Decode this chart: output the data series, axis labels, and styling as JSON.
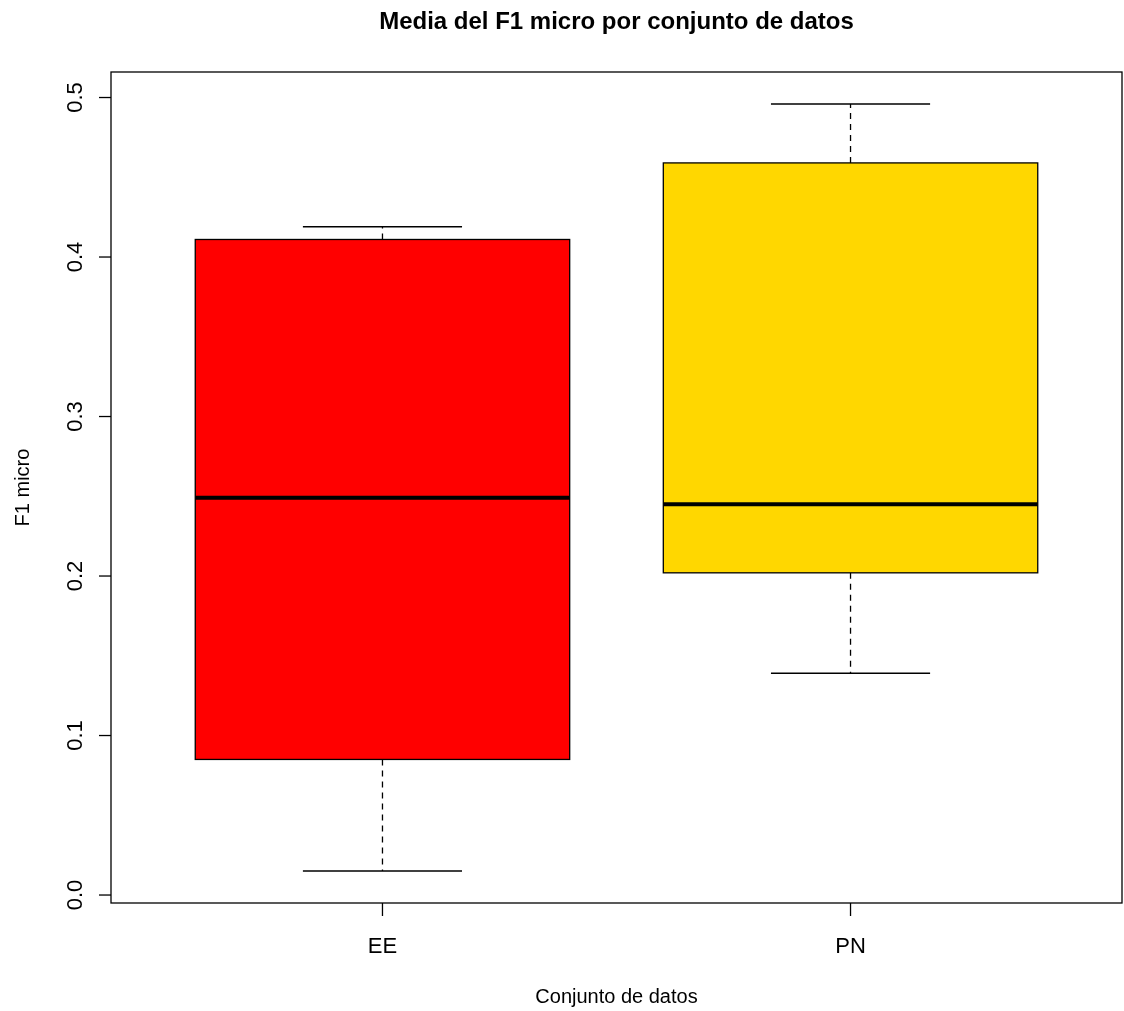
{
  "chart_data": {
    "type": "box",
    "title": "Media del F1 micro por conjunto de datos",
    "xlabel": "Conjunto de datos",
    "ylabel": "F1 micro",
    "categories": [
      "EE",
      "PN"
    ],
    "boxes": [
      {
        "low": 0.015,
        "q1": 0.085,
        "median": 0.249,
        "q3": 0.411,
        "high": 0.419
      },
      {
        "low": 0.139,
        "q1": 0.202,
        "median": 0.245,
        "q3": 0.459,
        "high": 0.496
      }
    ],
    "colors": [
      "#ff0000",
      "#ffd700"
    ],
    "ylim": [
      -0.005,
      0.516
    ],
    "yticks": [
      {
        "value": 0,
        "label": "0.0"
      },
      0.1,
      0.2,
      0.3,
      0.4,
      0.5
    ]
  }
}
